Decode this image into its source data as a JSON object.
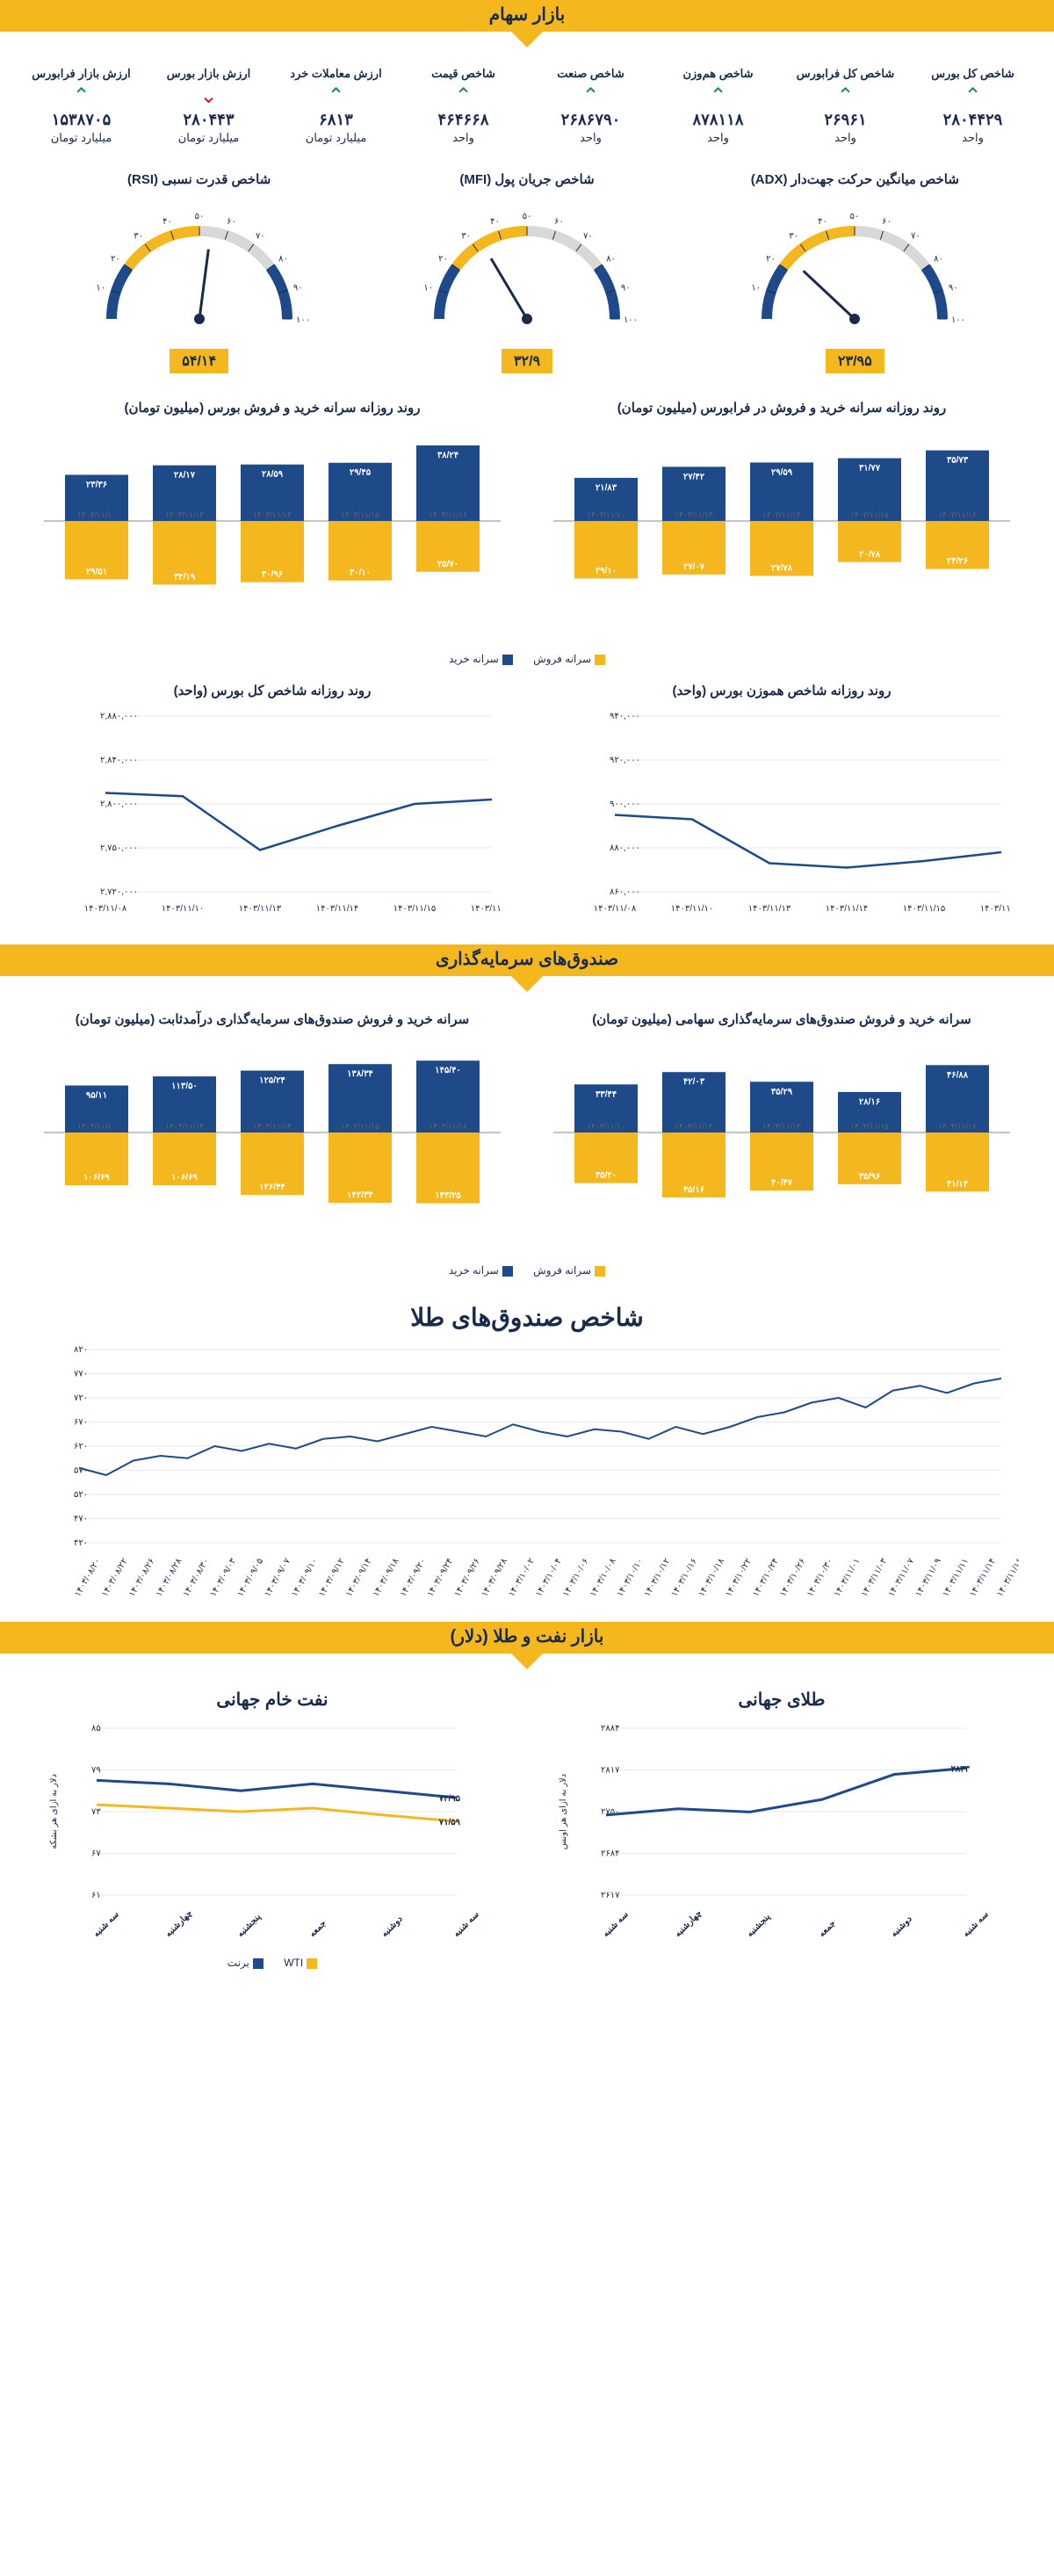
{
  "colors": {
    "yellow": "#f4b81e",
    "blue": "#1e4a8a",
    "darkblue": "#1a2a4a",
    "green": "#1e9050",
    "red": "#c82020",
    "grid": "#d0d0d0",
    "bg": "#ffffff"
  },
  "section_stock": {
    "title": "بازار سهام"
  },
  "metrics": [
    {
      "label": "شاخص کل بورس",
      "value": "۲۸۰۴۴۲۹",
      "unit": "واحد",
      "dir": "up"
    },
    {
      "label": "شاخص کل فرابورس",
      "value": "۲۶۹۶۱",
      "unit": "واحد",
      "dir": "up"
    },
    {
      "label": "شاخص هم‌وزن",
      "value": "۸۷۸۱۱۸",
      "unit": "واحد",
      "dir": "up"
    },
    {
      "label": "شاخص صنعت",
      "value": "۲۶۸۶۷۹۰",
      "unit": "واحد",
      "dir": "up"
    },
    {
      "label": "شاخص قیمت",
      "value": "۴۶۴۶۶۸",
      "unit": "واحد",
      "dir": "up"
    },
    {
      "label": "ارزش معاملات خرد",
      "value": "۶۸۱۳",
      "unit": "میلیارد تومان",
      "dir": "up"
    },
    {
      "label": "ارزش بازار بورس",
      "value": "۲۸۰۴۴۳",
      "unit": "میلیارد تومان",
      "dir": "down"
    },
    {
      "label": "ارزش بازار فرابورس",
      "value": "۱۵۳۸۷۰۵",
      "unit": "میلیارد تومان",
      "dir": "up"
    }
  ],
  "gauges": [
    {
      "title": "شاخص میانگین حرکت جهت‌دار (ADX)",
      "value": "۲۳/۹۵",
      "num": 23.95,
      "ticks": [
        "۱۰",
        "۲۰",
        "۳۰",
        "۴۰",
        "۵۰",
        "۶۰",
        "۷۰",
        "۸۰",
        "۹۰",
        "۱۰۰"
      ]
    },
    {
      "title": "شاخص جریان پول (MFI)",
      "value": "۳۲/۹",
      "num": 32.9,
      "ticks": [
        "۱۰",
        "۲۰",
        "۳۰",
        "۴۰",
        "۵۰",
        "۶۰",
        "۷۰",
        "۸۰",
        "۹۰",
        "۱۰۰"
      ]
    },
    {
      "title": "شاخص قدرت نسبی (RSI)",
      "value": "۵۴/۱۴",
      "num": 54.14,
      "ticks": [
        "۱۰",
        "۲۰",
        "۳۰",
        "۴۰",
        "۵۰",
        "۶۰",
        "۷۰",
        "۸۰",
        "۹۰",
        "۱۰۰"
      ]
    }
  ],
  "buysell_titles": {
    "right": "روند روزانه سرانه خرید و فروش در فرابورس (میلیون تومان)",
    "left": "روند روزانه سرانه خرید و فروش بورس (میلیون تومان)"
  },
  "buysell_legend": {
    "buy": "سرانه خرید",
    "sell": "سرانه فروش"
  },
  "buysell_right": {
    "dates": [
      "۱۴۰۳/۱۱/۱۰",
      "۱۴۰۳/۱۱/۱۳",
      "۱۴۰۳/۱۱/۱۴",
      "۱۴۰۳/۱۱/۱۵",
      "۱۴۰۳/۱۱/۱۶"
    ],
    "buy": [
      21.83,
      27.42,
      29.59,
      31.77,
      35.73
    ],
    "sell": [
      29.1,
      27.07,
      27.78,
      20.78,
      24.26
    ],
    "buy_labels": [
      "۲۱/۸۳",
      "۲۷/۴۲",
      "۲۹/۵۹",
      "۳۱/۷۷",
      "۳۵/۷۳"
    ],
    "sell_labels": [
      "۲۹/۱۰",
      "۲۷/۰۷",
      "۲۷/۷۸",
      "۲۰/۷۸",
      "۲۴/۲۶"
    ],
    "ymax": 40
  },
  "buysell_left": {
    "dates": [
      "۱۴۰۳/۱۱/۱۰",
      "۱۴۰۳/۱۱/۱۳",
      "۱۴۰۳/۱۱/۱۴",
      "۱۴۰۳/۱۱/۱۵",
      "۱۴۰۳/۱۱/۱۶"
    ],
    "buy": [
      23.36,
      28.17,
      28.59,
      29.45,
      38.24
    ],
    "sell": [
      29.51,
      32.19,
      30.96,
      30.1,
      25.7
    ],
    "buy_labels": [
      "۲۳/۳۶",
      "۲۸/۱۷",
      "۲۸/۵۹",
      "۲۹/۴۵",
      "۳۸/۲۴"
    ],
    "sell_labels": [
      "۲۹/۵۱",
      "۳۲/۱۹",
      "۳۰/۹۶",
      "۳۰/۱۰",
      "۲۵/۷۰"
    ],
    "ymax": 40
  },
  "line_titles": {
    "right": "روند روزانه شاخص هموزن بورس (واحد)",
    "left": "روند روزانه شاخص کل بورس (واحد)"
  },
  "line_right": {
    "xlabels": [
      "۱۴۰۳/۱۱/۰۸",
      "۱۴۰۳/۱۱/۱۰",
      "۱۴۰۳/۱۱/۱۳",
      "۱۴۰۳/۱۱/۱۴",
      "۱۴۰۳/۱۱/۱۵",
      "۱۴۰۳/۱۱/۱۶"
    ],
    "yticks": [
      "۸۶۰,۰۰۰",
      "۸۸۰,۰۰۰",
      "۹۰۰,۰۰۰",
      "۹۲۰,۰۰۰",
      "۹۴۰,۰۰۰"
    ],
    "ymin": 860000,
    "ymax": 940000,
    "values": [
      895000,
      893000,
      873000,
      871000,
      874000,
      878000
    ]
  },
  "line_left": {
    "xlabels": [
      "۱۴۰۳/۱۱/۰۸",
      "۱۴۰۳/۱۱/۱۰",
      "۱۴۰۳/۱۱/۱۳",
      "۱۴۰۳/۱۱/۱۴",
      "۱۴۰۳/۱۱/۱۵",
      "۱۴۰۳/۱۱/۱۶"
    ],
    "yticks": [
      "۲,۷۲۰,۰۰۰",
      "۲,۷۵۰,۰۰۰",
      "۲,۸۰۰,۰۰۰",
      "۲,۸۴۰,۰۰۰",
      "۲,۸۸۰,۰۰۰"
    ],
    "ymin": 2720000,
    "ymax": 2880000,
    "values": [
      2810000,
      2807000,
      2758000,
      2780000,
      2800000,
      2804000
    ]
  },
  "section_funds": {
    "title": "صندوق‌های سرمایه‌گذاری"
  },
  "funds_titles": {
    "right": "سرانه خرید و فروش صندوق‌های سرمایه‌گذاری سهامی (میلیون تومان)",
    "left": "سرانه خرید و فروش صندوق‌های سرمایه‌گذاری درآمدثابت (میلیون تومان)"
  },
  "funds_right": {
    "dates": [
      "۱۴۰۳/۱۱/۱۰",
      "۱۴۰۳/۱۱/۱۳",
      "۱۴۰۳/۱۱/۱۴",
      "۱۴۰۳/۱۱/۱۵",
      "۱۴۰۳/۱۱/۱۶"
    ],
    "buy": [
      33.44,
      42.03,
      35.29,
      28.16,
      46.88
    ],
    "sell": [
      35.2,
      45.16,
      40.47,
      35.96,
      41.13
    ],
    "buy_labels": [
      "۳۳/۴۴",
      "۴۲/۰۳",
      "۳۵/۲۹",
      "۲۸/۱۶",
      "۴۶/۸۸"
    ],
    "sell_labels": [
      "۳۵/۲۰",
      "۴۵/۱۶",
      "۴۰/۴۷",
      "۳۵/۹۶",
      "۴۱/۱۳"
    ],
    "ymax": 55
  },
  "funds_left": {
    "dates": [
      "۱۴۰۳/۱۱/۱۰",
      "۱۴۰۳/۱۱/۱۳",
      "۱۴۰۳/۱۱/۱۴",
      "۱۴۰۳/۱۱/۱۵",
      "۱۴۰۳/۱۱/۱۶"
    ],
    "buy": [
      95.11,
      113.5,
      125.24,
      138.34,
      145.4
    ],
    "sell": [
      106.69,
      106.69,
      126.44,
      142.34,
      143.25
    ],
    "buy_labels": [
      "۹۵/۱۱",
      "۱۱۳/۵۰",
      "۱۲۵/۲۴",
      "۱۳۸/۳۴",
      "۱۴۵/۴۰"
    ],
    "sell_labels": [
      "۱۰۶/۶۹",
      "۱۰۶/۶۹",
      "۱۲۶/۴۴",
      "۱۴۲/۳۴",
      "۱۴۳/۲۵"
    ],
    "ymax": 160
  },
  "gold_index": {
    "title": "شاخص صندوق‌های طلا",
    "yticks": [
      "۴۲۰",
      "۴۷۰",
      "۵۲۰",
      "۵۷۰",
      "۶۲۰",
      "۶۷۰",
      "۷۲۰",
      "۷۷۰",
      "۸۲۰"
    ],
    "ymin": 420,
    "ymax": 820,
    "xlabels": [
      "۱۴۰۳/۰۸/۲۰",
      "۱۴۰۳/۰۸/۲۲",
      "۱۴۰۳/۰۸/۲۶",
      "۱۴۰۳/۰۸/۲۸",
      "۱۴۰۳/۰۸/۳۰",
      "۱۴۰۳/۰۹/۰۳",
      "۱۴۰۳/۰۹/۰۵",
      "۱۴۰۳/۰۹/۰۷",
      "۱۴۰۳/۰۹/۱۰",
      "۱۴۰۳/۰۹/۱۲",
      "۱۴۰۳/۰۹/۱۴",
      "۱۴۰۳/۰۹/۱۸",
      "۱۴۰۳/۰۹/۲۰",
      "۱۴۰۳/۰۹/۲۴",
      "۱۴۰۳/۰۹/۲۶",
      "۱۴۰۳/۰۹/۲۸",
      "۱۴۰۳/۱۰/۰۲",
      "۱۴۰۳/۱۰/۰۴",
      "۱۴۰۳/۱۰/۰۶",
      "۱۴۰۳/۱۰/۰۸",
      "۱۴۰۳/۱۰/۱۰",
      "۱۴۰۳/۱۰/۱۲",
      "۱۴۰۳/۱۰/۱۶",
      "۱۴۰۳/۱۰/۱۸",
      "۱۴۰۳/۱۰/۲۲",
      "۱۴۰۳/۱۰/۲۴",
      "۱۴۰۳/۱۰/۲۶",
      "۱۴۰۳/۱۰/۳۰",
      "۱۴۰۳/۱۱/۰۱",
      "۱۴۰۳/۱۱/۰۳",
      "۱۴۰۳/۱۱/۰۷",
      "۱۴۰۳/۱۱/۰۹",
      "۱۴۰۳/۱۱/۱۱",
      "۱۴۰۳/۱۱/۱۴",
      "۱۴۰۳/۱۱/۱۶"
    ],
    "values": [
      575,
      560,
      590,
      600,
      595,
      620,
      610,
      625,
      615,
      635,
      640,
      630,
      645,
      660,
      650,
      640,
      665,
      650,
      640,
      655,
      650,
      635,
      660,
      645,
      660,
      680,
      690,
      710,
      720,
      700,
      735,
      745,
      730,
      750,
      760
    ]
  },
  "section_oilgold": {
    "title": "بازار نفت و طلا (دلار)"
  },
  "gold_world": {
    "title": "طلای جهانی",
    "ylabel": "دلار به ازای هر اونس",
    "xlabels": [
      "سه شنبه",
      "چهارشنبه",
      "پنجشنبه",
      "جمعه",
      "دوشنبه",
      "سه شنبه"
    ],
    "yticks": [
      "۲۶۱۷",
      "۲۶۸۴",
      "۲۷۵۰",
      "۲۸۱۷",
      "۲۸۸۴"
    ],
    "ymin": 2617,
    "ymax": 2884,
    "values": [
      2745,
      2755,
      2750,
      2770,
      2810,
      2820
    ],
    "end_label": "۲۸۳۳"
  },
  "oil_world": {
    "title": "نفت خام جهانی",
    "ylabel": "دلار به ازای هر بشکه",
    "xlabels": [
      "سه شنبه",
      "چهارشنبه",
      "پنجشنبه",
      "جمعه",
      "دوشنبه",
      "سه شنبه"
    ],
    "yticks": [
      "۶۱",
      "۶۷",
      "۷۳",
      "۷۹",
      "۸۵"
    ],
    "ymin": 61,
    "ymax": 85,
    "brent": [
      77.5,
      77.0,
      76.0,
      77.0,
      76.0,
      75.0
    ],
    "wti": [
      74.0,
      73.5,
      73.0,
      73.5,
      72.5,
      71.6
    ],
    "brent_end": "۷۴/۹۵",
    "wti_end": "۷۱/۵۹",
    "legend": {
      "brent": "برنت",
      "wti": "WTI"
    }
  }
}
